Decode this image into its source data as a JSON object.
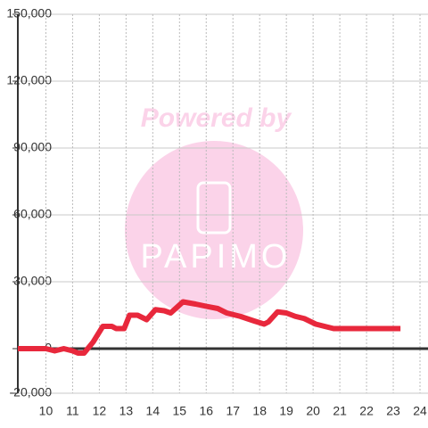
{
  "chart_data": {
    "type": "line",
    "annotations": [
      "Powered by",
      "PAPIMO"
    ],
    "x": [
      8.95,
      10.0,
      10.33,
      10.67,
      11.0,
      11.2,
      11.43,
      11.77,
      12.13,
      12.47,
      12.63,
      12.93,
      13.13,
      13.43,
      13.77,
      14.1,
      14.43,
      14.67,
      15.13,
      15.6,
      16.0,
      16.43,
      16.77,
      17.27,
      17.77,
      18.17,
      18.33,
      18.67,
      19.0,
      19.33,
      19.67,
      20.1,
      20.43,
      20.77,
      21.27,
      23.27
    ],
    "series": [
      {
        "color": "#e8283c",
        "values": [
          0,
          0,
          -1000,
          0,
          -1000,
          -2000,
          -2000,
          3000,
          10000,
          10000,
          9000,
          9000,
          15000,
          15000,
          13000,
          17500,
          17000,
          16000,
          21000,
          20000,
          19000,
          18000,
          16000,
          14500,
          12500,
          11000,
          12000,
          16500,
          16000,
          14500,
          13500,
          11000,
          10000,
          9000,
          9000,
          9000
        ]
      }
    ],
    "xlim": [
      8.95,
      24.3
    ],
    "xticks": [
      10,
      11,
      12,
      13,
      14,
      15,
      16,
      17,
      18,
      19,
      20,
      21,
      22,
      23,
      24
    ],
    "ylim": [
      -20000,
      150000
    ],
    "yticks": [
      {
        "value": -20000,
        "label": "-20,000"
      },
      0,
      {
        "value": 30000,
        "label": "30,000"
      },
      {
        "value": 60000,
        "label": "60,000"
      },
      {
        "value": 90000,
        "label": "90,000"
      },
      {
        "value": 120000,
        "label": "120,000"
      },
      {
        "value": 150000,
        "label": "150,000"
      }
    ],
    "grid": true
  }
}
